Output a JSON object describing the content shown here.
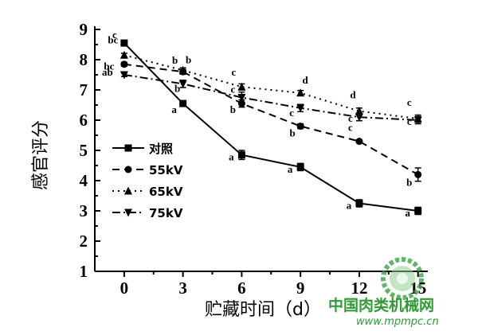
{
  "chart_data": {
    "type": "line",
    "xlabel": "贮藏时间（d）",
    "ylabel": "感官评分",
    "x": [
      0,
      3,
      6,
      9,
      12,
      15
    ],
    "x_tick_labels": [
      "0",
      "3",
      "6",
      "9",
      "12",
      "15"
    ],
    "xlim": [
      -1.5,
      15.5
    ],
    "ylim": [
      1,
      9
    ],
    "y_ticks": [
      1,
      2,
      3,
      4,
      5,
      6,
      7,
      8,
      9
    ],
    "legend_position": "lower-left",
    "series": [
      {
        "name": "对照",
        "marker": "square",
        "line_style": "solid",
        "values": [
          8.55,
          6.55,
          4.85,
          4.45,
          3.25,
          3.0
        ],
        "errors": [
          0.06,
          0.05,
          0.15,
          0.12,
          0.12,
          0.12
        ],
        "labels": [
          "c",
          "a",
          "a",
          "a",
          "a",
          "a"
        ]
      },
      {
        "name": "55kV",
        "marker": "circle",
        "line_style": "dashed",
        "values": [
          7.85,
          7.6,
          6.55,
          5.8,
          5.3,
          4.2
        ],
        "errors": [
          0.06,
          0.08,
          0.12,
          0.08,
          0.05,
          0.22
        ],
        "labels": [
          "bc",
          "b",
          "b",
          "b",
          "c",
          "b"
        ]
      },
      {
        "name": "65kV",
        "marker": "triangle-up",
        "line_style": "dotted",
        "values": [
          8.15,
          7.65,
          7.1,
          6.9,
          6.3,
          6.05
        ],
        "errors": [
          0.06,
          0.08,
          0.1,
          0.08,
          0.1,
          0.12
        ],
        "labels": [
          "bc",
          "b",
          "c",
          "d",
          "d",
          "c"
        ]
      },
      {
        "name": "75kV",
        "marker": "triangle-down",
        "line_style": "dash-dot",
        "values": [
          7.5,
          7.2,
          6.75,
          6.4,
          6.1,
          6.0
        ],
        "errors": [
          0.06,
          0.12,
          0.18,
          0.12,
          0.12,
          0.12
        ],
        "labels": [
          "ab",
          "b",
          "c",
          "c",
          "c",
          "c"
        ]
      }
    ]
  },
  "watermark": {
    "site_name": "中国肉类机械网",
    "url": "www.mpmpc.cn",
    "color": "#2e9b35"
  }
}
